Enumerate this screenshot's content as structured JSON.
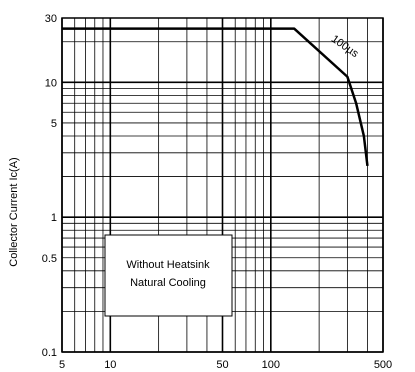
{
  "chart_data": {
    "type": "line",
    "xscale": "log",
    "yscale": "log",
    "xlim": [
      5,
      500
    ],
    "ylim": [
      0.1,
      30
    ],
    "xlabel": "",
    "ylabel": "Collector Current Ic(A)",
    "grid": true,
    "x_tick_labels": [
      {
        "value": 5,
        "label": "5"
      },
      {
        "value": 10,
        "label": "10"
      },
      {
        "value": 50,
        "label": "50"
      },
      {
        "value": 100,
        "label": "100"
      },
      {
        "value": 500,
        "label": "500"
      }
    ],
    "y_tick_labels": [
      {
        "value": 0.1,
        "label": "0.1"
      },
      {
        "value": 0.5,
        "label": "0.5"
      },
      {
        "value": 1,
        "label": "1"
      },
      {
        "value": 5,
        "label": "5"
      },
      {
        "value": 10,
        "label": "10"
      },
      {
        "value": 30,
        "label": "30"
      }
    ],
    "series": [
      {
        "name": "",
        "x": [
          5,
          140,
          300,
          340,
          380,
          400
        ],
        "y": [
          25,
          25,
          11,
          7,
          4,
          2.4
        ]
      }
    ],
    "annotations": {
      "curve_label": "100µs",
      "box_line1": "Without Heatsink",
      "box_line2": "Natural Cooling"
    }
  }
}
